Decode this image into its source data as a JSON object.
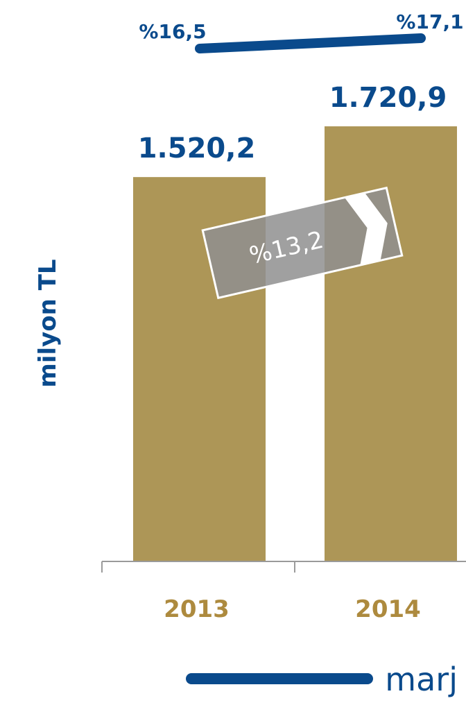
{
  "chart_data": {
    "type": "bar",
    "categories": [
      "2013",
      "2014"
    ],
    "values": [
      1520.2,
      1720.9
    ],
    "value_labels": [
      "1.520,2",
      "1.720,9"
    ],
    "ylabel": "milyon TL",
    "ylim": [
      0,
      1850
    ],
    "grid": false,
    "colors": {
      "bar": "#ad9657",
      "margin_line": "#0a4a8c",
      "text": "#0a4a8c",
      "tick_text": "#ad8a3e",
      "axis": "#9a9a9a",
      "growth_badge": "#8f8f8f"
    },
    "margin_series": {
      "name": "marj",
      "values": [
        16.5,
        17.1
      ],
      "labels": [
        "%16,5",
        "%17,1"
      ]
    },
    "growth": {
      "label": "%13,2"
    },
    "legend": {
      "label": "marj",
      "placement": "bottom-right"
    }
  }
}
